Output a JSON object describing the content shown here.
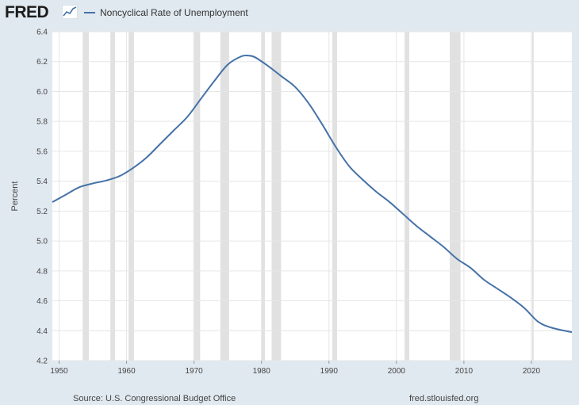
{
  "header": {
    "logo_text": "FRED",
    "logo_icon": "fred-chart-icon",
    "legend_label": "Noncyclical Rate of Unemployment"
  },
  "footer": {
    "source": "Source: U.S. Congressional Budget Office",
    "site": "fred.stlouisfed.org"
  },
  "colors": {
    "line": "#4572a7",
    "recession": "#e1e1e1",
    "grid": "#e6e6e6",
    "background": "#e1e9f0",
    "plot_background": "#ffffff"
  },
  "chart_data": {
    "type": "line",
    "title": "",
    "xlabel": "",
    "ylabel": "Percent",
    "xlim": [
      1949,
      2026
    ],
    "ylim": [
      4.2,
      6.4
    ],
    "yticks": [
      "4.2",
      "4.4",
      "4.6",
      "4.8",
      "5.0",
      "5.2",
      "5.4",
      "5.6",
      "5.8",
      "6.0",
      "6.2",
      "6.4"
    ],
    "xticks": [
      "1950",
      "1960",
      "1970",
      "1980",
      "1990",
      "2000",
      "2010",
      "2020"
    ],
    "grid": true,
    "legend_position": "top-left",
    "recessions": [
      [
        1953.5,
        1954.4
      ],
      [
        1957.6,
        1958.3
      ],
      [
        1960.3,
        1961.1
      ],
      [
        1969.9,
        1970.9
      ],
      [
        1973.9,
        1975.2
      ],
      [
        1980.0,
        1980.5
      ],
      [
        1981.5,
        1982.9
      ],
      [
        1990.5,
        1991.2
      ],
      [
        2001.2,
        2001.9
      ],
      [
        2007.9,
        2009.5
      ],
      [
        2020.1,
        2020.3
      ]
    ],
    "series": [
      {
        "name": "Noncyclical Rate of Unemployment",
        "x": [
          1949,
          1951,
          1953,
          1955,
          1957,
          1959,
          1961,
          1963,
          1965,
          1967,
          1969,
          1971,
          1973,
          1975,
          1977,
          1978,
          1979,
          1981,
          1983,
          1985,
          1987,
          1989,
          1991,
          1993,
          1995,
          1997,
          1999,
          2001,
          2003,
          2005,
          2007,
          2009,
          2011,
          2013,
          2015,
          2017,
          2019,
          2021,
          2023,
          2026
        ],
        "y": [
          5.26,
          5.31,
          5.36,
          5.385,
          5.405,
          5.435,
          5.49,
          5.56,
          5.65,
          5.74,
          5.83,
          5.95,
          6.07,
          6.18,
          6.235,
          6.24,
          6.23,
          6.17,
          6.1,
          6.03,
          5.92,
          5.78,
          5.63,
          5.5,
          5.41,
          5.33,
          5.26,
          5.18,
          5.1,
          5.03,
          4.96,
          4.88,
          4.82,
          4.74,
          4.68,
          4.62,
          4.55,
          4.46,
          4.42,
          4.39
        ]
      }
    ]
  }
}
